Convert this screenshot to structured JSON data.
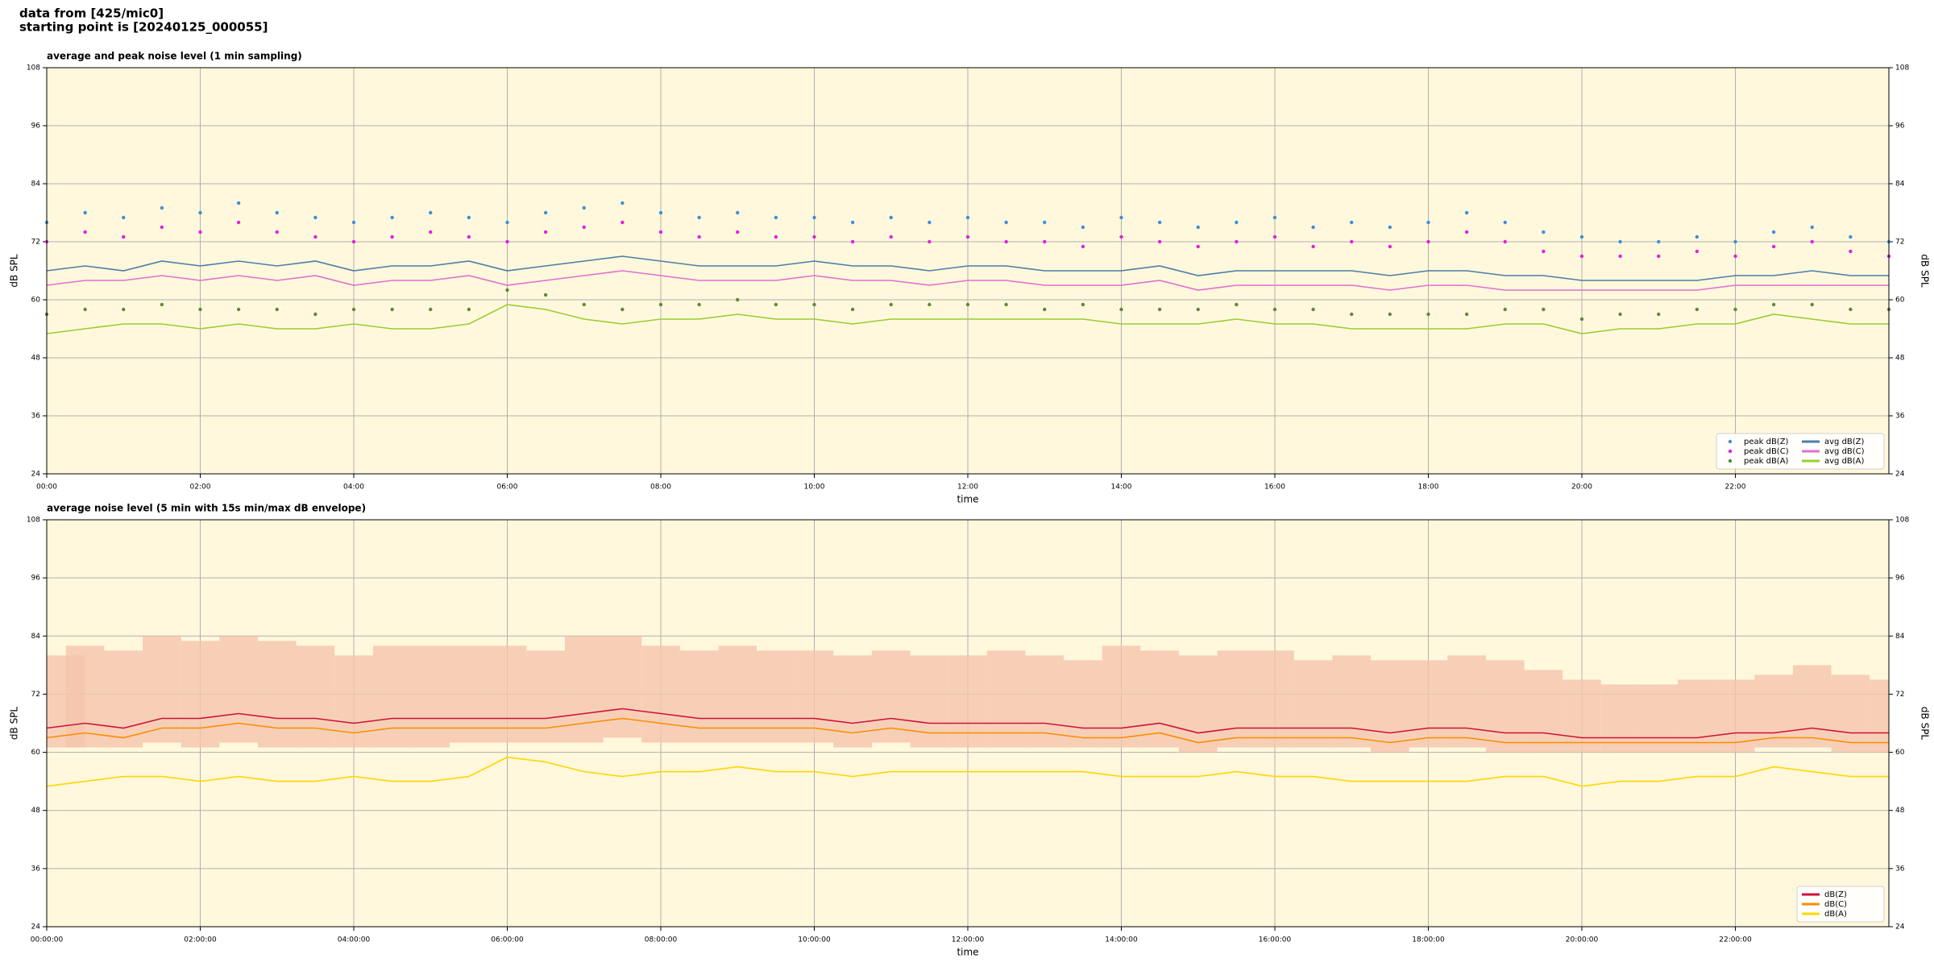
{
  "header": {
    "line1": "data from [425/mic0]",
    "line2": "starting point is [20240125_000055]"
  },
  "chart_data": [
    {
      "type": "line",
      "title": "average and peak noise level (1 min sampling)",
      "x_label": "time",
      "y_label": "dB SPL",
      "xlim": [
        0,
        24
      ],
      "ylim": [
        24,
        108
      ],
      "yticks": [
        24,
        36,
        48,
        60,
        72,
        84,
        96,
        108
      ],
      "xticks": [
        {
          "value": 0,
          "label": "00:00"
        },
        {
          "value": 2,
          "label": "02:00"
        },
        {
          "value": 4,
          "label": "04:00"
        },
        {
          "value": 6,
          "label": "06:00"
        },
        {
          "value": 8,
          "label": "08:00"
        },
        {
          "value": 10,
          "label": "10:00"
        },
        {
          "value": 12,
          "label": "12:00"
        },
        {
          "value": 14,
          "label": "14:00"
        },
        {
          "value": 16,
          "label": "16:00"
        },
        {
          "value": 18,
          "label": "18:00"
        },
        {
          "value": 20,
          "label": "20:00"
        },
        {
          "value": 22,
          "label": "22:00"
        }
      ],
      "grid": true,
      "background": "#fff8dc",
      "legend": "lower right",
      "legend_ncol": 2,
      "x": [
        0,
        0.5,
        1,
        1.5,
        2,
        2.5,
        3,
        3.5,
        4,
        4.5,
        5,
        5.5,
        6,
        6.5,
        7,
        7.5,
        8,
        8.5,
        9,
        9.5,
        10,
        10.5,
        11,
        11.5,
        12,
        12.5,
        13,
        13.5,
        14,
        14.5,
        15,
        15.5,
        16,
        16.5,
        17,
        17.5,
        18,
        18.5,
        19,
        19.5,
        20,
        20.5,
        21,
        21.5,
        22,
        22.5,
        23,
        23.5,
        24
      ],
      "series": [
        {
          "name": "peak dB(Z)",
          "kind": "points",
          "color": "#3a8fd8",
          "values": [
            76,
            78,
            77,
            79,
            78,
            80,
            78,
            77,
            76,
            77,
            78,
            77,
            76,
            78,
            79,
            80,
            78,
            77,
            78,
            77,
            77,
            76,
            77,
            76,
            77,
            76,
            76,
            75,
            77,
            76,
            75,
            76,
            77,
            75,
            76,
            75,
            76,
            78,
            76,
            74,
            73,
            72,
            72,
            73,
            72,
            74,
            75,
            73,
            72
          ]
        },
        {
          "name": "peak dB(C)",
          "kind": "points",
          "color": "#e020e0",
          "values": [
            72,
            74,
            73,
            75,
            74,
            76,
            74,
            73,
            72,
            73,
            74,
            73,
            72,
            74,
            75,
            76,
            74,
            73,
            74,
            73,
            73,
            72,
            73,
            72,
            73,
            72,
            72,
            71,
            73,
            72,
            71,
            72,
            73,
            71,
            72,
            71,
            72,
            74,
            72,
            70,
            69,
            69,
            69,
            70,
            69,
            71,
            72,
            70,
            69
          ]
        },
        {
          "name": "peak dB(A)",
          "kind": "points",
          "color": "#5a8a3a",
          "values": [
            57,
            58,
            58,
            59,
            58,
            58,
            58,
            57,
            58,
            58,
            58,
            58,
            62,
            61,
            59,
            58,
            59,
            59,
            60,
            59,
            59,
            58,
            59,
            59,
            59,
            59,
            58,
            59,
            58,
            58,
            58,
            59,
            58,
            58,
            57,
            57,
            57,
            57,
            58,
            58,
            56,
            57,
            57,
            58,
            58,
            59,
            59,
            58,
            58
          ]
        },
        {
          "name": "avg dB(Z)",
          "kind": "line",
          "color": "#4a7ea8",
          "values": [
            66,
            67,
            66,
            68,
            67,
            68,
            67,
            68,
            66,
            67,
            67,
            68,
            66,
            67,
            68,
            69,
            68,
            67,
            67,
            67,
            68,
            67,
            67,
            66,
            67,
            67,
            66,
            66,
            66,
            67,
            65,
            66,
            66,
            66,
            66,
            65,
            66,
            66,
            65,
            65,
            64,
            64,
            64,
            64,
            65,
            65,
            66,
            65,
            65
          ]
        },
        {
          "name": "avg dB(C)",
          "kind": "line",
          "color": "#e070d0",
          "values": [
            63,
            64,
            64,
            65,
            64,
            65,
            64,
            65,
            63,
            64,
            64,
            65,
            63,
            64,
            65,
            66,
            65,
            64,
            64,
            64,
            65,
            64,
            64,
            63,
            64,
            64,
            63,
            63,
            63,
            64,
            62,
            63,
            63,
            63,
            63,
            62,
            63,
            63,
            62,
            62,
            62,
            62,
            62,
            62,
            63,
            63,
            63,
            63,
            63
          ]
        },
        {
          "name": "avg dB(A)",
          "kind": "line",
          "color": "#9acd32",
          "values": [
            53,
            54,
            55,
            55,
            54,
            55,
            54,
            54,
            55,
            54,
            54,
            55,
            59,
            58,
            56,
            55,
            56,
            56,
            57,
            56,
            56,
            55,
            56,
            56,
            56,
            56,
            56,
            56,
            55,
            55,
            55,
            56,
            55,
            55,
            54,
            54,
            54,
            54,
            55,
            55,
            53,
            54,
            54,
            55,
            55,
            57,
            56,
            55,
            55
          ]
        }
      ]
    },
    {
      "type": "line",
      "title": "average noise level (5 min with 15s min/max dB envelope)",
      "x_label": "time",
      "y_label": "dB SPL",
      "xlim": [
        0,
        24
      ],
      "ylim": [
        24,
        108
      ],
      "yticks": [
        24,
        36,
        48,
        60,
        72,
        84,
        96,
        108
      ],
      "xticks": [
        {
          "value": 0,
          "label": "00:00:00"
        },
        {
          "value": 2,
          "label": "02:00:00"
        },
        {
          "value": 4,
          "label": "04:00:00"
        },
        {
          "value": 6,
          "label": "06:00:00"
        },
        {
          "value": 8,
          "label": "08:00:00"
        },
        {
          "value": 10,
          "label": "10:00:00"
        },
        {
          "value": 12,
          "label": "12:00:00"
        },
        {
          "value": 14,
          "label": "14:00:00"
        },
        {
          "value": 16,
          "label": "16:00:00"
        },
        {
          "value": 18,
          "label": "18:00:00"
        },
        {
          "value": 20,
          "label": "20:00:00"
        },
        {
          "value": 22,
          "label": "22:00:00"
        }
      ],
      "grid": true,
      "background": "#fff8dc",
      "legend": "lower right",
      "legend_ncol": 1,
      "x": [
        0,
        0.5,
        1,
        1.5,
        2,
        2.5,
        3,
        3.5,
        4,
        4.5,
        5,
        5.5,
        6,
        6.5,
        7,
        7.5,
        8,
        8.5,
        9,
        9.5,
        10,
        10.5,
        11,
        11.5,
        12,
        12.5,
        13,
        13.5,
        14,
        14.5,
        15,
        15.5,
        16,
        16.5,
        17,
        17.5,
        18,
        18.5,
        19,
        19.5,
        20,
        20.5,
        21,
        21.5,
        22,
        22.5,
        23,
        23.5,
        24
      ],
      "envelope": {
        "color": "#f5c4ac",
        "min": [
          61,
          61,
          61,
          62,
          61,
          62,
          61,
          61,
          61,
          61,
          61,
          62,
          62,
          62,
          62,
          63,
          62,
          62,
          62,
          62,
          62,
          61,
          62,
          61,
          61,
          61,
          61,
          61,
          61,
          61,
          60,
          61,
          61,
          61,
          61,
          60,
          61,
          61,
          60,
          60,
          60,
          60,
          60,
          60,
          60,
          61,
          61,
          60,
          60
        ],
        "max": [
          80,
          82,
          81,
          84,
          83,
          84,
          83,
          82,
          80,
          82,
          82,
          82,
          82,
          81,
          84,
          84,
          82,
          81,
          82,
          81,
          81,
          80,
          81,
          80,
          80,
          81,
          80,
          79,
          82,
          81,
          80,
          81,
          81,
          79,
          80,
          79,
          79,
          80,
          79,
          77,
          75,
          74,
          74,
          75,
          75,
          76,
          78,
          76,
          75
        ]
      },
      "series": [
        {
          "name": "dB(Z)",
          "kind": "line",
          "color": "#d0103a",
          "values": [
            65,
            66,
            65,
            67,
            67,
            68,
            67,
            67,
            66,
            67,
            67,
            67,
            67,
            67,
            68,
            69,
            68,
            67,
            67,
            67,
            67,
            66,
            67,
            66,
            66,
            66,
            66,
            65,
            65,
            66,
            64,
            65,
            65,
            65,
            65,
            64,
            65,
            65,
            64,
            64,
            63,
            63,
            63,
            63,
            64,
            64,
            65,
            64,
            64
          ]
        },
        {
          "name": "dB(C)",
          "kind": "line",
          "color": "#ff8c00",
          "values": [
            63,
            64,
            63,
            65,
            65,
            66,
            65,
            65,
            64,
            65,
            65,
            65,
            65,
            65,
            66,
            67,
            66,
            65,
            65,
            65,
            65,
            64,
            65,
            64,
            64,
            64,
            64,
            63,
            63,
            64,
            62,
            63,
            63,
            63,
            63,
            62,
            63,
            63,
            62,
            62,
            62,
            62,
            62,
            62,
            62,
            63,
            63,
            62,
            62
          ]
        },
        {
          "name": "dB(A)",
          "kind": "line",
          "color": "#ffd700",
          "values": [
            53,
            54,
            55,
            55,
            54,
            55,
            54,
            54,
            55,
            54,
            54,
            55,
            59,
            58,
            56,
            55,
            56,
            56,
            57,
            56,
            56,
            55,
            56,
            56,
            56,
            56,
            56,
            56,
            55,
            55,
            55,
            56,
            55,
            55,
            54,
            54,
            54,
            54,
            55,
            55,
            53,
            54,
            54,
            55,
            55,
            57,
            56,
            55,
            55
          ]
        }
      ]
    }
  ]
}
